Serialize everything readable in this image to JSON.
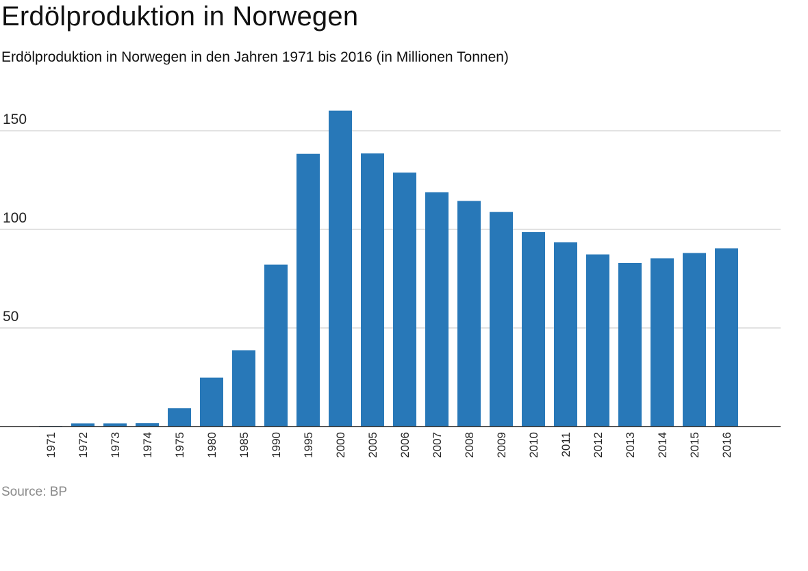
{
  "header": {
    "title": "Erdölproduktion in Norwegen",
    "subtitle": "Erdölproduktion in Norwegen in den Jahren 1971 bis 2016 (in Millionen Tonnen)"
  },
  "footer": {
    "source": "Source: BP"
  },
  "chart_data": {
    "type": "bar",
    "title": "Erdölproduktion in Norwegen",
    "subtitle": "Erdölproduktion in Norwegen in den Jahren 1971 bis 2016 (in Millionen Tonnen)",
    "xlabel": "",
    "ylabel": "",
    "categories": [
      "1971",
      "1972",
      "1973",
      "1974",
      "1975",
      "1980",
      "1985",
      "1990",
      "1995",
      "2000",
      "2005",
      "2006",
      "2007",
      "2008",
      "2009",
      "2010",
      "2011",
      "2012",
      "2013",
      "2014",
      "2015",
      "2016"
    ],
    "values": [
      0.3,
      1.6,
      1.6,
      1.7,
      9.3,
      24.8,
      38.7,
      82.1,
      138.3,
      160.2,
      138.5,
      128.8,
      118.8,
      114.4,
      108.8,
      98.6,
      93.4,
      87.3,
      83.0,
      85.3,
      88.0,
      90.4
    ],
    "yticks": [
      50,
      100,
      150
    ],
    "ylim": [
      0,
      150
    ],
    "grid": true,
    "legend": "none",
    "bar_color": "#2878b8",
    "source": "Source: BP"
  }
}
